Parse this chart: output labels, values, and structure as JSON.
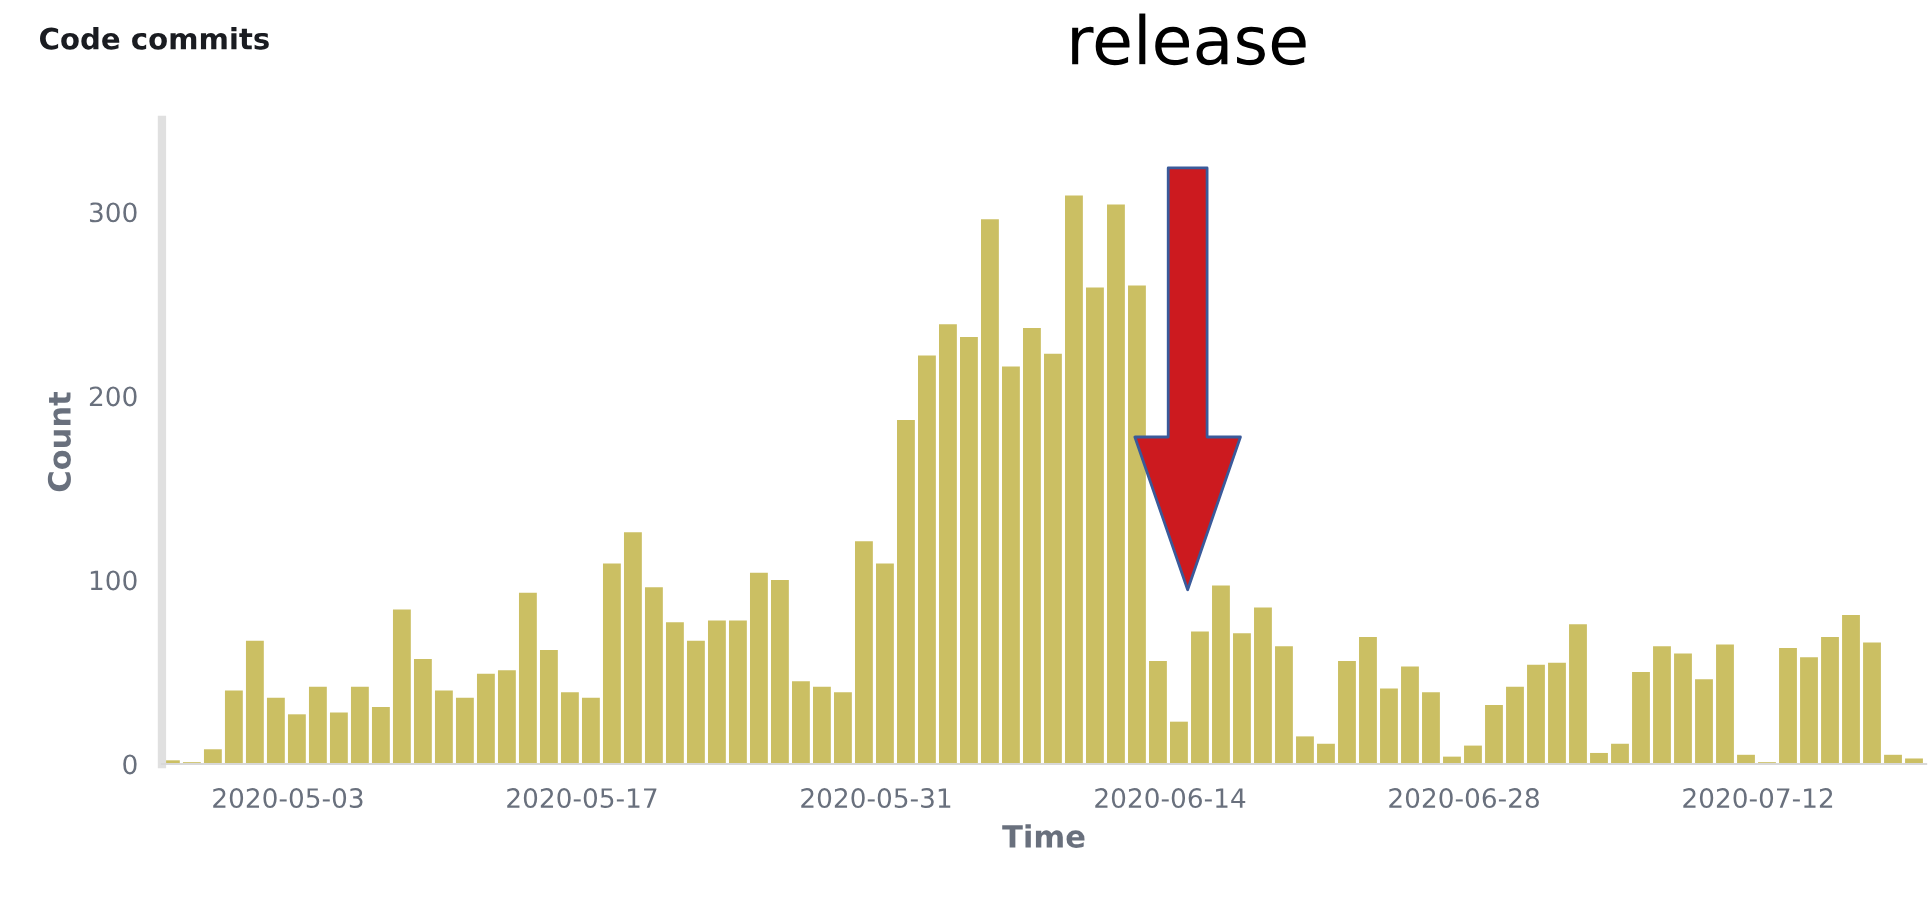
{
  "chart_data": {
    "type": "bar",
    "title": "Code commits",
    "xlabel": "Time",
    "ylabel": "Count",
    "x": [
      "2020-04-27",
      "2020-04-28",
      "2020-04-29",
      "2020-04-30",
      "2020-05-01",
      "2020-05-02",
      "2020-05-03",
      "2020-05-04",
      "2020-05-05",
      "2020-05-06",
      "2020-05-07",
      "2020-05-08",
      "2020-05-09",
      "2020-05-10",
      "2020-05-11",
      "2020-05-12",
      "2020-05-13",
      "2020-05-14",
      "2020-05-15",
      "2020-05-16",
      "2020-05-17",
      "2020-05-18",
      "2020-05-19",
      "2020-05-20",
      "2020-05-21",
      "2020-05-22",
      "2020-05-23",
      "2020-05-24",
      "2020-05-25",
      "2020-05-26",
      "2020-05-27",
      "2020-05-28",
      "2020-05-29",
      "2020-05-30",
      "2020-05-31",
      "2020-06-01",
      "2020-06-02",
      "2020-06-03",
      "2020-06-04",
      "2020-06-05",
      "2020-06-06",
      "2020-06-07",
      "2020-06-08",
      "2020-06-09",
      "2020-06-10",
      "2020-06-11",
      "2020-06-12",
      "2020-06-13",
      "2020-06-14",
      "2020-06-15",
      "2020-06-16",
      "2020-06-17",
      "2020-06-18",
      "2020-06-19",
      "2020-06-20",
      "2020-06-21",
      "2020-06-22",
      "2020-06-23",
      "2020-06-24",
      "2020-06-25",
      "2020-06-26",
      "2020-06-27",
      "2020-06-28",
      "2020-06-29",
      "2020-06-30",
      "2020-07-01",
      "2020-07-02",
      "2020-07-03",
      "2020-07-04",
      "2020-07-05",
      "2020-07-06",
      "2020-07-07",
      "2020-07-08",
      "2020-07-09",
      "2020-07-10",
      "2020-07-11",
      "2020-07-12",
      "2020-07-13",
      "2020-07-14",
      "2020-07-15",
      "2020-07-16",
      "2020-07-17",
      "2020-07-18",
      "2020-07-19"
    ],
    "values": [
      2,
      1,
      8,
      40,
      67,
      36,
      27,
      42,
      28,
      42,
      31,
      84,
      57,
      40,
      36,
      49,
      51,
      93,
      62,
      39,
      36,
      109,
      126,
      96,
      77,
      67,
      78,
      78,
      104,
      100,
      45,
      42,
      39,
      121,
      109,
      187,
      222,
      239,
      232,
      296,
      216,
      237,
      223,
      309,
      259,
      304,
      260,
      56,
      23,
      72,
      97,
      71,
      85,
      64,
      15,
      11,
      56,
      69,
      41,
      53,
      39,
      4,
      10,
      32,
      42,
      54,
      55,
      76,
      6,
      11,
      50,
      64,
      60,
      46,
      65,
      5,
      1,
      63,
      58,
      69,
      81,
      66,
      5,
      3
    ],
    "color": "#cbbf63",
    "xlim": [
      "2020-04-27",
      "2020-07-20"
    ],
    "xticks": [
      "2020-05-03",
      "2020-05-17",
      "2020-05-31",
      "2020-06-14",
      "2020-06-28",
      "2020-07-12"
    ],
    "ylim": [
      0,
      350
    ],
    "yticks": [
      0,
      100,
      200,
      300
    ],
    "grid": false,
    "legend": false,
    "annotations": [
      "release"
    ]
  }
}
